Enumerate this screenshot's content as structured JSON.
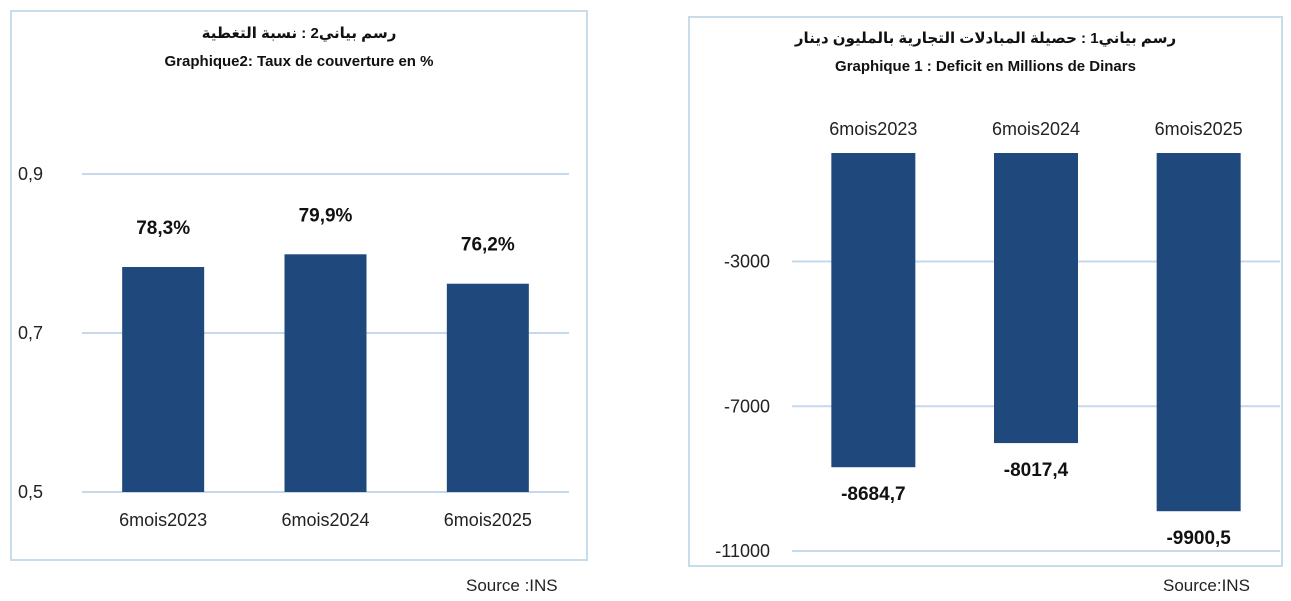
{
  "chart_data": [
    {
      "type": "bar",
      "title_ar": "رسم بياني2 : نسبة التغطية",
      "title": "Graphique2: Taux de couverture en %",
      "categories": [
        "6mois2023",
        "6mois2024",
        "6mois2025"
      ],
      "values": [
        0.783,
        0.799,
        0.762
      ],
      "data_labels": [
        "78,3%",
        "79,9%",
        "76,2%"
      ],
      "yticks": [
        0.5,
        0.7,
        0.9
      ],
      "ytick_labels": [
        "0,5",
        "0,7",
        "0,9"
      ],
      "ylim": [
        0.5,
        0.9
      ],
      "grid": true,
      "color": "#1f497d",
      "source": "Source :INS"
    },
    {
      "type": "bar",
      "title_ar": "رسم بياني1 : حصيلة المبادلات التجارية بالمليون دينار",
      "title": "Graphique 1 : Deficit en Millions de Dinars",
      "categories": [
        "6mois2023",
        "6mois2024",
        "6mois2025"
      ],
      "values": [
        -8684.7,
        -8017.4,
        -9900.5
      ],
      "data_labels": [
        "-8684,7",
        "-8017,4",
        "-9900,5"
      ],
      "yticks": [
        -11000,
        -7000,
        -3000
      ],
      "ytick_labels": [
        "-11000",
        "-7000",
        "-3000"
      ],
      "ylim": [
        -11000,
        0
      ],
      "category_axis_position": "top",
      "grid": true,
      "color": "#1f497d",
      "source": "Source:INS"
    }
  ]
}
